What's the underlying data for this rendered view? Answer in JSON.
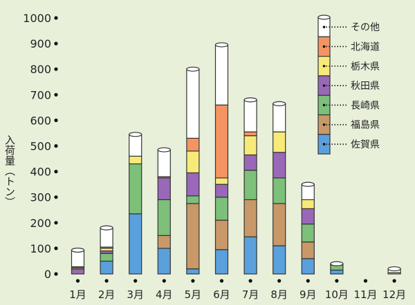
{
  "chart_data": {
    "type": "bar",
    "stacked": true,
    "ylabel": "入荷量（トン）",
    "ylim": [
      0,
      1000
    ],
    "yticks": [
      "0",
      "100",
      "200",
      "300",
      "400",
      "500",
      "600",
      "700",
      "800",
      "900",
      "1000"
    ],
    "categories": [
      "1月",
      "2月",
      "3月",
      "4月",
      "5月",
      "6月",
      "7月",
      "8月",
      "9月",
      "10月",
      "11月",
      "12月"
    ],
    "series": [
      {
        "name": "佐賀県",
        "color": "#5aa0dc",
        "values": [
          0,
          50,
          235,
          100,
          20,
          95,
          145,
          110,
          60,
          15,
          0,
          0
        ]
      },
      {
        "name": "福島県",
        "color": "#c99868",
        "values": [
          0,
          0,
          0,
          50,
          255,
          115,
          145,
          165,
          65,
          0,
          0,
          0
        ]
      },
      {
        "name": "長崎県",
        "color": "#7cc07a",
        "values": [
          0,
          30,
          195,
          140,
          30,
          90,
          115,
          100,
          70,
          20,
          0,
          0
        ]
      },
      {
        "name": "秋田県",
        "color": "#9a68b8",
        "values": [
          20,
          10,
          0,
          85,
          90,
          50,
          60,
          100,
          60,
          0,
          0,
          0
        ]
      },
      {
        "name": "栃木県",
        "color": "#f8ea78",
        "values": [
          5,
          10,
          30,
          0,
          85,
          25,
          75,
          80,
          35,
          0,
          0,
          5
        ]
      },
      {
        "name": "北海道",
        "color": "#f59462",
        "values": [
          3,
          5,
          0,
          5,
          50,
          285,
          15,
          0,
          0,
          0,
          0,
          0
        ]
      },
      {
        "name": "その他",
        "color": "#ffffff",
        "values": [
          65,
          75,
          85,
          105,
          270,
          235,
          125,
          110,
          60,
          5,
          0,
          15
        ]
      }
    ],
    "legend_position": "top-right"
  }
}
